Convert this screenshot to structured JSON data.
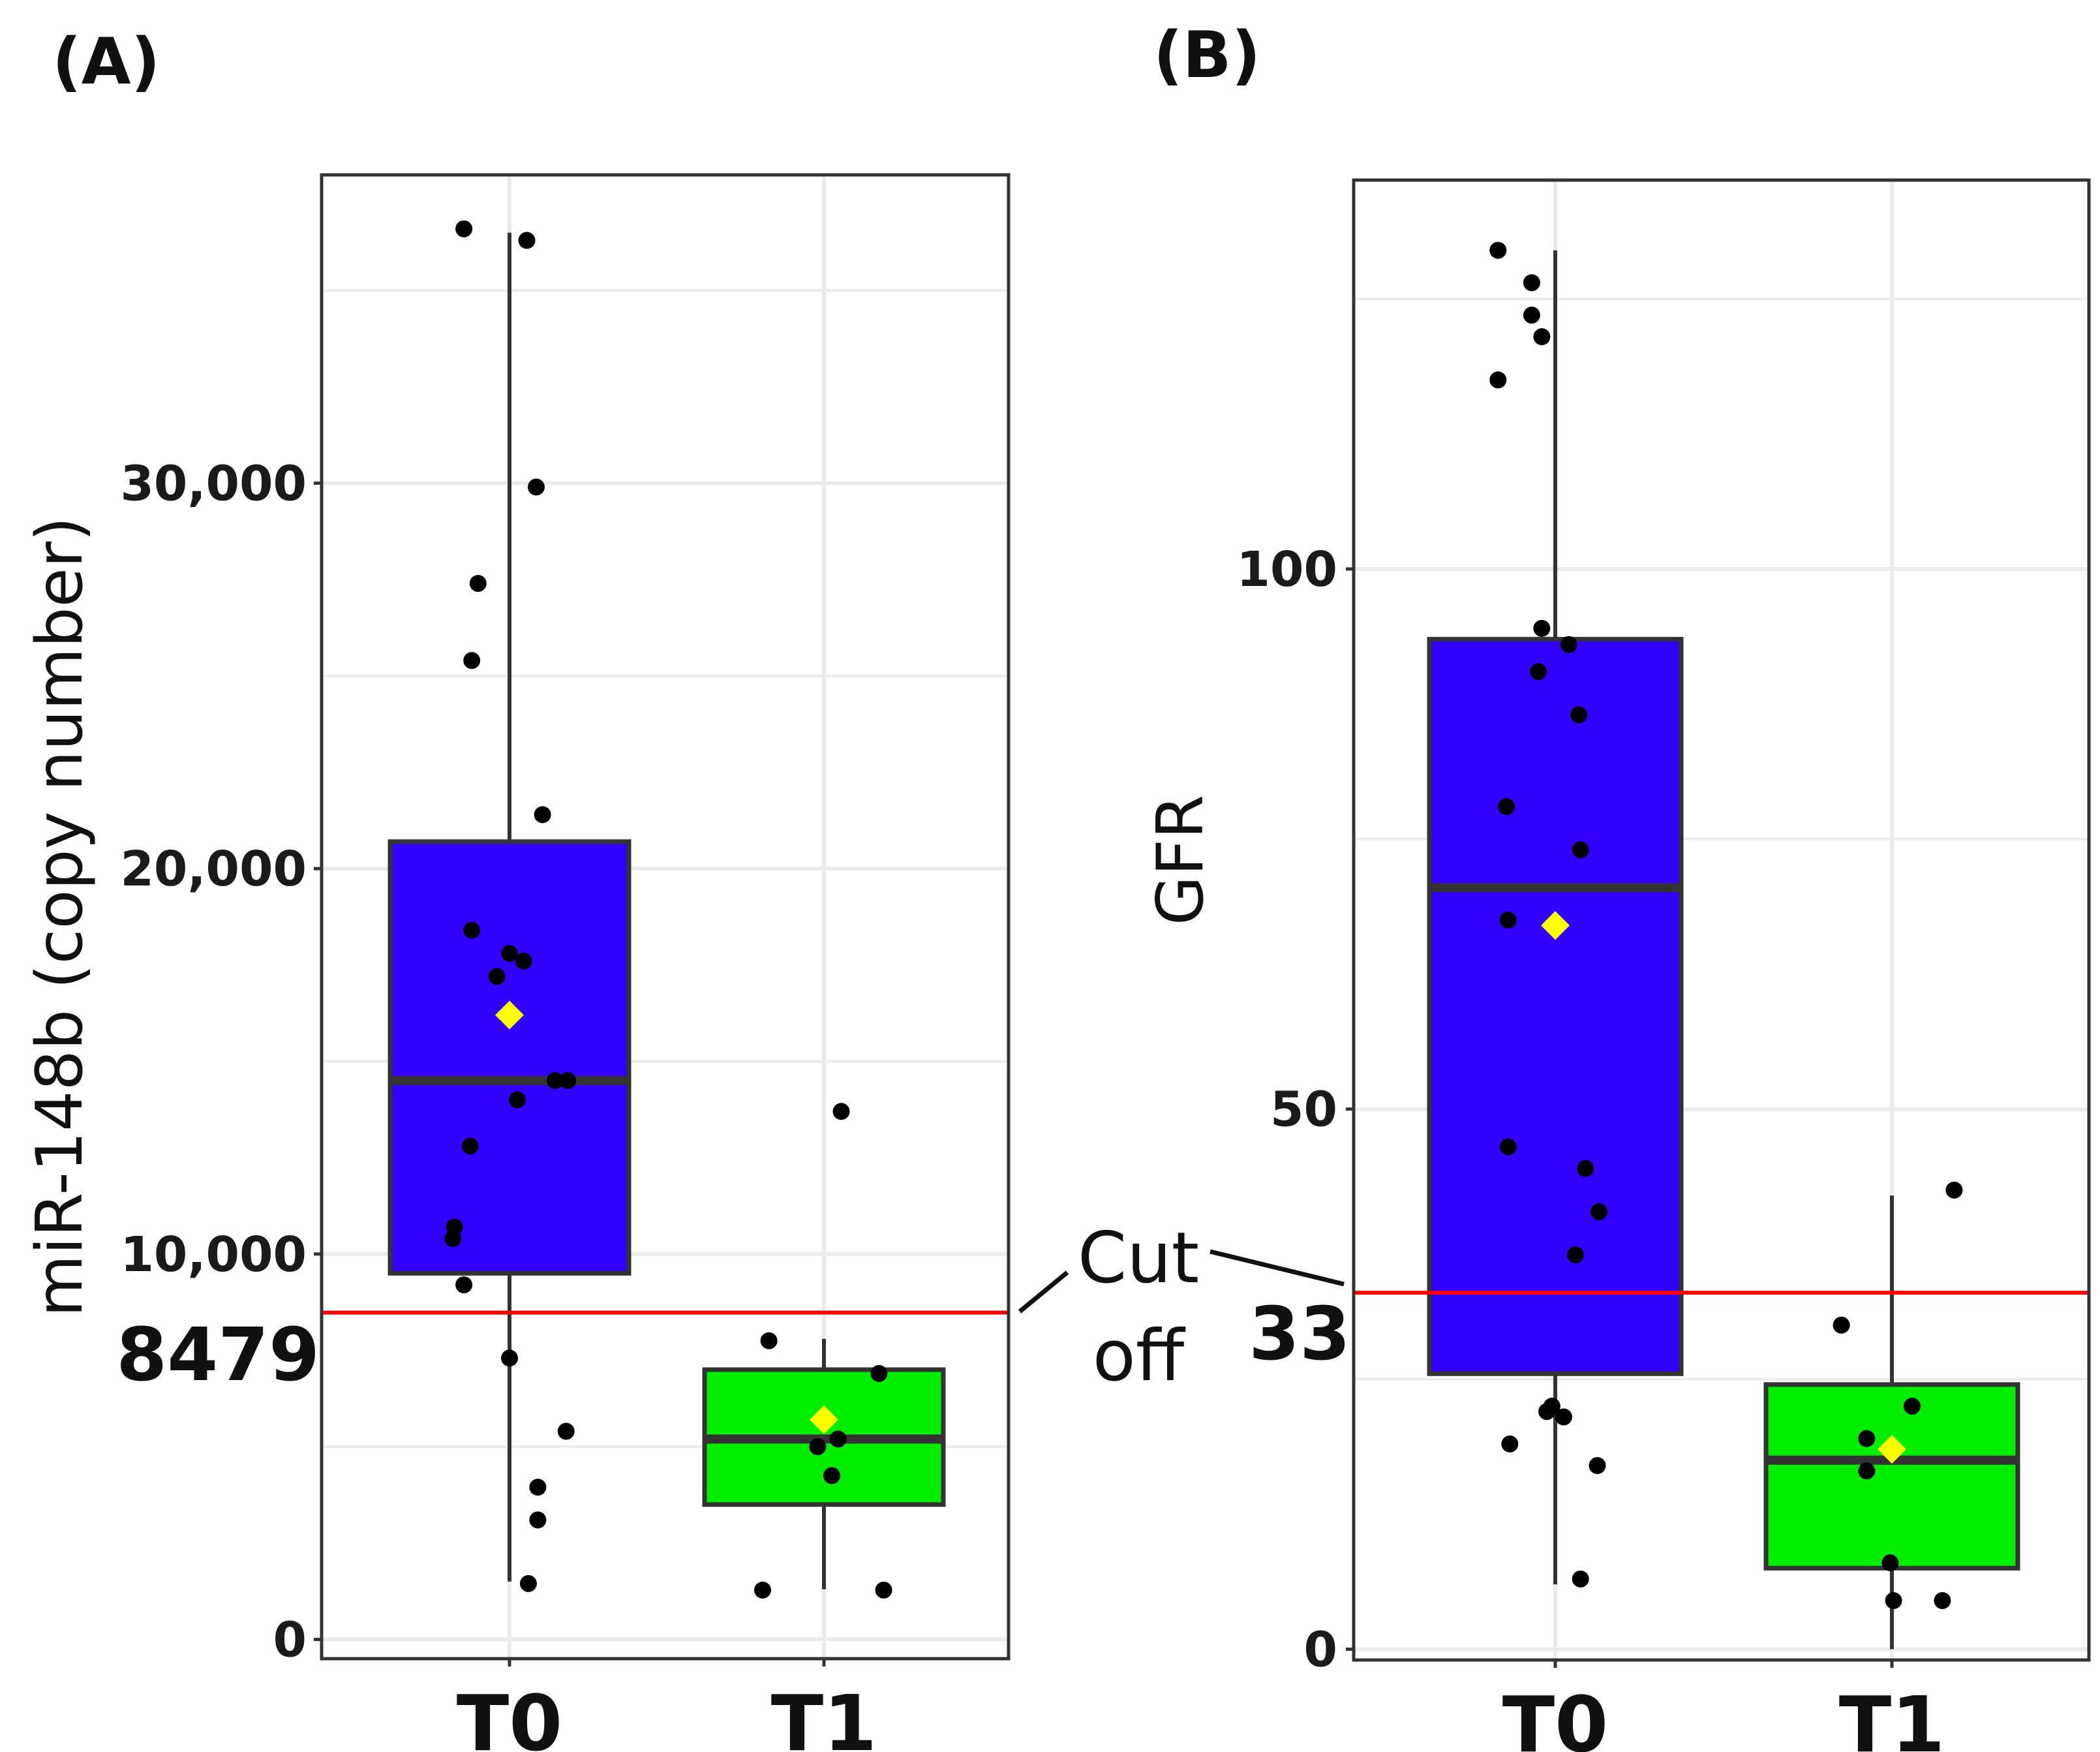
{
  "chart_data": [
    {
      "type": "boxplot",
      "panel_label": "(A)",
      "title": "",
      "xlabel": "",
      "ylabel": "miR-148b (copy number)",
      "ylim": [
        -500,
        38000
      ],
      "yticks": [
        0,
        10000,
        20000,
        30000
      ],
      "ytick_labels": [
        "0",
        "10,000",
        "20,000",
        "30,000"
      ],
      "categories": [
        "T0",
        "T1"
      ],
      "grid": true,
      "boxes": [
        {
          "name": "T0",
          "fill": "#3300ff",
          "whisker_low": 1500,
          "q1": 9500,
          "median": 14500,
          "q3": 20700,
          "whisker_high": 36500,
          "mean": 16200
        },
        {
          "name": "T1",
          "fill": "#00ee00",
          "whisker_low": 1300,
          "q1": 3500,
          "median": 5200,
          "q3": 7000,
          "whisker_high": 7800,
          "mean": 5700
        }
      ],
      "points": [
        {
          "category": "T0",
          "jitter": -0.29,
          "value": 36600
        },
        {
          "category": "T0",
          "jitter": 0.11,
          "value": 36300
        },
        {
          "category": "T0",
          "jitter": 0.17,
          "value": 29900
        },
        {
          "category": "T0",
          "jitter": -0.2,
          "value": 27400
        },
        {
          "category": "T0",
          "jitter": -0.24,
          "value": 25400
        },
        {
          "category": "T0",
          "jitter": 0.21,
          "value": 21400
        },
        {
          "category": "T0",
          "jitter": -0.24,
          "value": 18400
        },
        {
          "category": "T0",
          "jitter": 0.0,
          "value": 17800
        },
        {
          "category": "T0",
          "jitter": 0.09,
          "value": 17600
        },
        {
          "category": "T0",
          "jitter": -0.08,
          "value": 17200
        },
        {
          "category": "T0",
          "jitter": 0.29,
          "value": 14500
        },
        {
          "category": "T0",
          "jitter": 0.37,
          "value": 14500
        },
        {
          "category": "T0",
          "jitter": 0.05,
          "value": 14000
        },
        {
          "category": "T0",
          "jitter": -0.25,
          "value": 12800
        },
        {
          "category": "T0",
          "jitter": -0.35,
          "value": 10700
        },
        {
          "category": "T0",
          "jitter": -0.36,
          "value": 10400
        },
        {
          "category": "T0",
          "jitter": -0.29,
          "value": 9200
        },
        {
          "category": "T0",
          "jitter": 0.0,
          "value": 7300
        },
        {
          "category": "T0",
          "jitter": 0.36,
          "value": 5400
        },
        {
          "category": "T0",
          "jitter": 0.18,
          "value": 3950
        },
        {
          "category": "T0",
          "jitter": 0.18,
          "value": 3100
        },
        {
          "category": "T0",
          "jitter": 0.12,
          "value": 1450
        },
        {
          "category": "T1",
          "jitter": 0.11,
          "value": 13700
        },
        {
          "category": "T1",
          "jitter": -0.35,
          "value": 7750
        },
        {
          "category": "T1",
          "jitter": 0.35,
          "value": 6900
        },
        {
          "category": "T1",
          "jitter": 0.09,
          "value": 5200
        },
        {
          "category": "T1",
          "jitter": -0.04,
          "value": 5000
        },
        {
          "category": "T1",
          "jitter": 0.05,
          "value": 4250
        },
        {
          "category": "T1",
          "jitter": -0.39,
          "value": 1280
        },
        {
          "category": "T1",
          "jitter": 0.38,
          "value": 1280
        }
      ],
      "cutoff": {
        "value": 8479,
        "label": "8479",
        "color": "#ff0000"
      }
    },
    {
      "type": "boxplot",
      "panel_label": "(B)",
      "title": "",
      "xlabel": "",
      "ylabel": "GFR",
      "ylim": [
        -1,
        136
      ],
      "yticks": [
        0,
        50,
        100
      ],
      "ytick_labels": [
        "0",
        "50",
        "100"
      ],
      "categories": [
        "T0",
        "T1"
      ],
      "grid": true,
      "boxes": [
        {
          "name": "T0",
          "fill": "#3300ff",
          "whisker_low": 6,
          "q1": 25.5,
          "median": 70.5,
          "q3": 93.5,
          "whisker_high": 129.5,
          "mean": 67
        },
        {
          "name": "T1",
          "fill": "#00ee00",
          "whisker_low": 0,
          "q1": 7.5,
          "median": 17.5,
          "q3": 24.5,
          "whisker_high": 42,
          "mean": 18.5
        }
      ],
      "points": [
        {
          "category": "T0",
          "jitter": -0.34,
          "value": 129.5
        },
        {
          "category": "T0",
          "jitter": -0.14,
          "value": 126.5
        },
        {
          "category": "T0",
          "jitter": -0.14,
          "value": 123.5
        },
        {
          "category": "T0",
          "jitter": -0.08,
          "value": 121.5
        },
        {
          "category": "T0",
          "jitter": -0.34,
          "value": 117.5
        },
        {
          "category": "T0",
          "jitter": -0.08,
          "value": 94.5
        },
        {
          "category": "T0",
          "jitter": 0.08,
          "value": 93
        },
        {
          "category": "T0",
          "jitter": -0.1,
          "value": 90.5
        },
        {
          "category": "T0",
          "jitter": 0.14,
          "value": 86.5
        },
        {
          "category": "T0",
          "jitter": -0.29,
          "value": 78
        },
        {
          "category": "T0",
          "jitter": 0.15,
          "value": 74
        },
        {
          "category": "T0",
          "jitter": -0.28,
          "value": 67.5
        },
        {
          "category": "T0",
          "jitter": -0.28,
          "value": 46.5
        },
        {
          "category": "T0",
          "jitter": 0.18,
          "value": 44.5
        },
        {
          "category": "T0",
          "jitter": 0.26,
          "value": 40.5
        },
        {
          "category": "T0",
          "jitter": 0.12,
          "value": 36.5
        },
        {
          "category": "T0",
          "jitter": -0.02,
          "value": 22.5
        },
        {
          "category": "T0",
          "jitter": -0.05,
          "value": 22
        },
        {
          "category": "T0",
          "jitter": 0.05,
          "value": 21.5
        },
        {
          "category": "T0",
          "jitter": -0.27,
          "value": 19
        },
        {
          "category": "T0",
          "jitter": 0.25,
          "value": 17
        },
        {
          "category": "T0",
          "jitter": 0.15,
          "value": 6.5
        },
        {
          "category": "T1",
          "jitter": 0.37,
          "value": 42.5
        },
        {
          "category": "T1",
          "jitter": -0.3,
          "value": 30
        },
        {
          "category": "T1",
          "jitter": 0.12,
          "value": 22.5
        },
        {
          "category": "T1",
          "jitter": -0.15,
          "value": 19.5
        },
        {
          "category": "T1",
          "jitter": -0.15,
          "value": 16.5
        },
        {
          "category": "T1",
          "jitter": -0.01,
          "value": 8
        },
        {
          "category": "T1",
          "jitter": 0.01,
          "value": 4.5
        },
        {
          "category": "T1",
          "jitter": 0.3,
          "value": 4.5
        }
      ],
      "cutoff": {
        "value": 33,
        "label": "33",
        "color": "#ff0000"
      }
    }
  ],
  "annotation": {
    "line1": "Cut",
    "line2": "off"
  },
  "colors": {
    "point": "#000000",
    "mean_marker": "#ffff00",
    "box_border": "#333333",
    "grid": "#ebebeb",
    "panel_border": "#333333"
  }
}
